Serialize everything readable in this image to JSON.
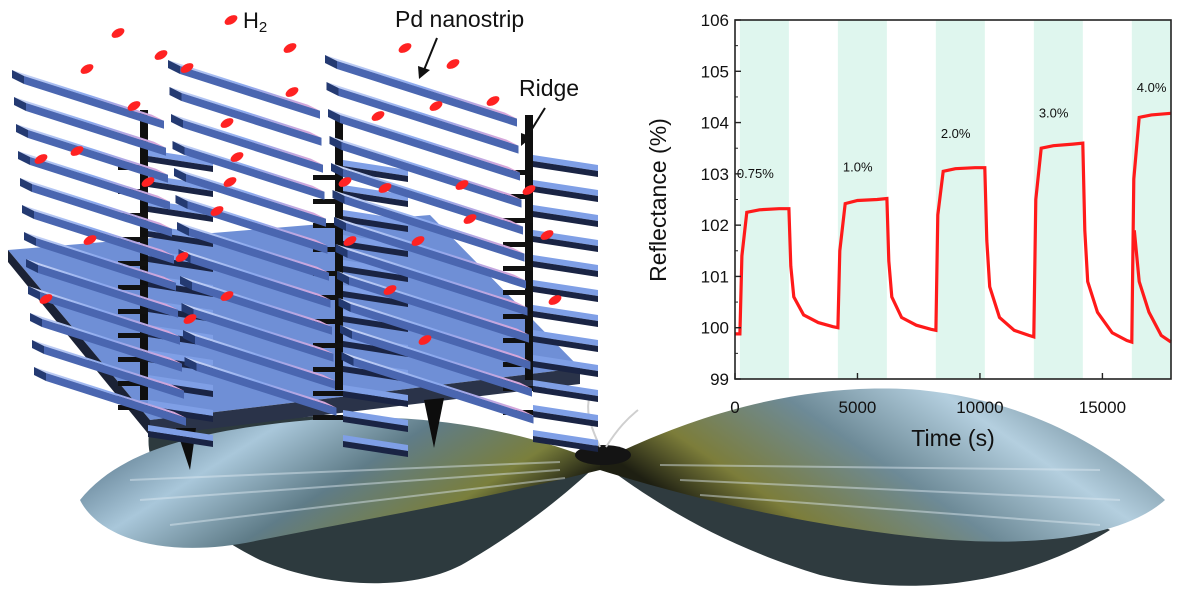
{
  "labels": {
    "h2": "H",
    "h2_sub": "2",
    "pd_nanostrip": "Pd nanostrip",
    "ridge": "Ridge"
  },
  "chart_data": {
    "type": "line",
    "title": "",
    "xlabel": "Time (s)",
    "ylabel": "Reflectance (%)",
    "xlim": [
      0,
      17800
    ],
    "ylim": [
      99,
      106
    ],
    "x_ticks": [
      0,
      5000,
      10000,
      15000
    ],
    "y_ticks": [
      99,
      100,
      101,
      102,
      103,
      104,
      105,
      106
    ],
    "series": [
      {
        "color": "#ff1a1a",
        "x": [
          0,
          200,
          280,
          480,
          1000,
          1800,
          2200,
          2280,
          2400,
          2800,
          3400,
          4000,
          4200,
          4280,
          4500,
          5000,
          5800,
          6200,
          6280,
          6400,
          6800,
          7400,
          8000,
          8200,
          8280,
          8500,
          9000,
          9800,
          10200,
          10280,
          10400,
          10800,
          11400,
          12000,
          12200,
          12280,
          12500,
          13000,
          13800,
          14200,
          14280,
          14400,
          14800,
          15400,
          16000,
          16200,
          16280,
          16500,
          17000,
          17800
        ],
        "y": [
          99.88,
          99.88,
          101.4,
          102.25,
          102.3,
          102.32,
          102.32,
          101.2,
          100.6,
          100.25,
          100.1,
          100.02,
          100.0,
          101.5,
          102.42,
          102.48,
          102.5,
          102.52,
          101.3,
          100.6,
          100.2,
          100.05,
          99.97,
          99.95,
          102.2,
          103.05,
          103.1,
          103.12,
          103.12,
          101.7,
          100.8,
          100.2,
          99.95,
          99.85,
          99.82,
          102.5,
          103.5,
          103.55,
          103.58,
          103.6,
          101.9,
          100.9,
          100.3,
          99.9,
          99.75,
          99.72,
          102.9,
          104.1,
          104.15,
          104.18
        ],
        "x_tail": [
          16300,
          16500,
          16900,
          17400,
          17800
        ],
        "y_tail": [
          101.9,
          100.9,
          100.3,
          99.85,
          99.72
        ]
      }
    ],
    "exposures": [
      {
        "start": 200,
        "end": 2200,
        "label": "0.75%"
      },
      {
        "start": 4200,
        "end": 6200,
        "label": "1.0%"
      },
      {
        "start": 8200,
        "end": 10200,
        "label": "2.0%"
      },
      {
        "start": 12200,
        "end": 14200,
        "label": "3.0%"
      },
      {
        "start": 16200,
        "end": 18200,
        "label": "4.0%"
      }
    ],
    "exposure_label_y": [
      102.92,
      103.05,
      103.7,
      104.1,
      104.6
    ],
    "band_color": "#dff6ee"
  }
}
